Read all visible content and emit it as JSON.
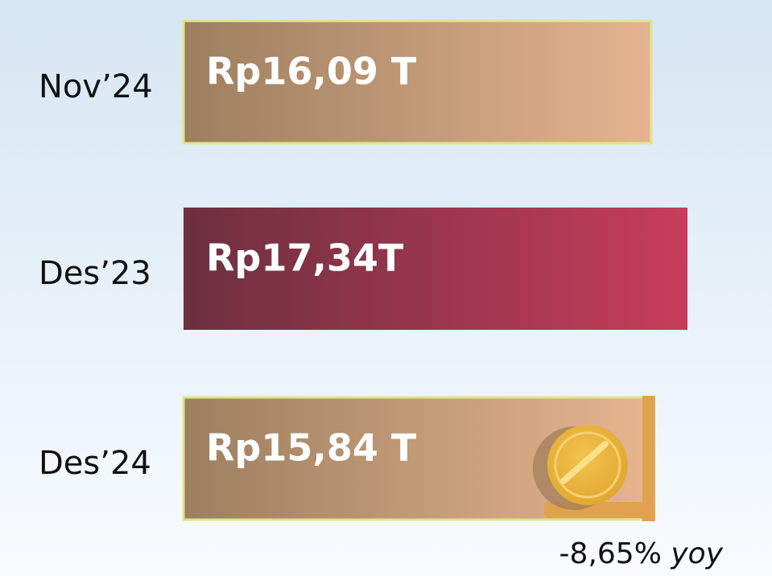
{
  "chart_data": {
    "type": "bar",
    "orientation": "horizontal",
    "categories": [
      "Nov’24",
      "Des’23",
      "Des’24"
    ],
    "values": [
      16.09,
      17.34,
      15.84
    ],
    "value_labels": [
      "Rp16,09 T",
      "Rp17,34T",
      "Rp15,84 T"
    ],
    "colors": [
      [
        "#9c7f5f",
        "#e6b48f"
      ],
      [
        "#6c3040",
        "#c83c5c"
      ],
      [
        "#9c7f5f",
        "#e6b48f"
      ]
    ],
    "annotation": {
      "text": "-8,65%",
      "emphasis": "yoy"
    }
  }
}
